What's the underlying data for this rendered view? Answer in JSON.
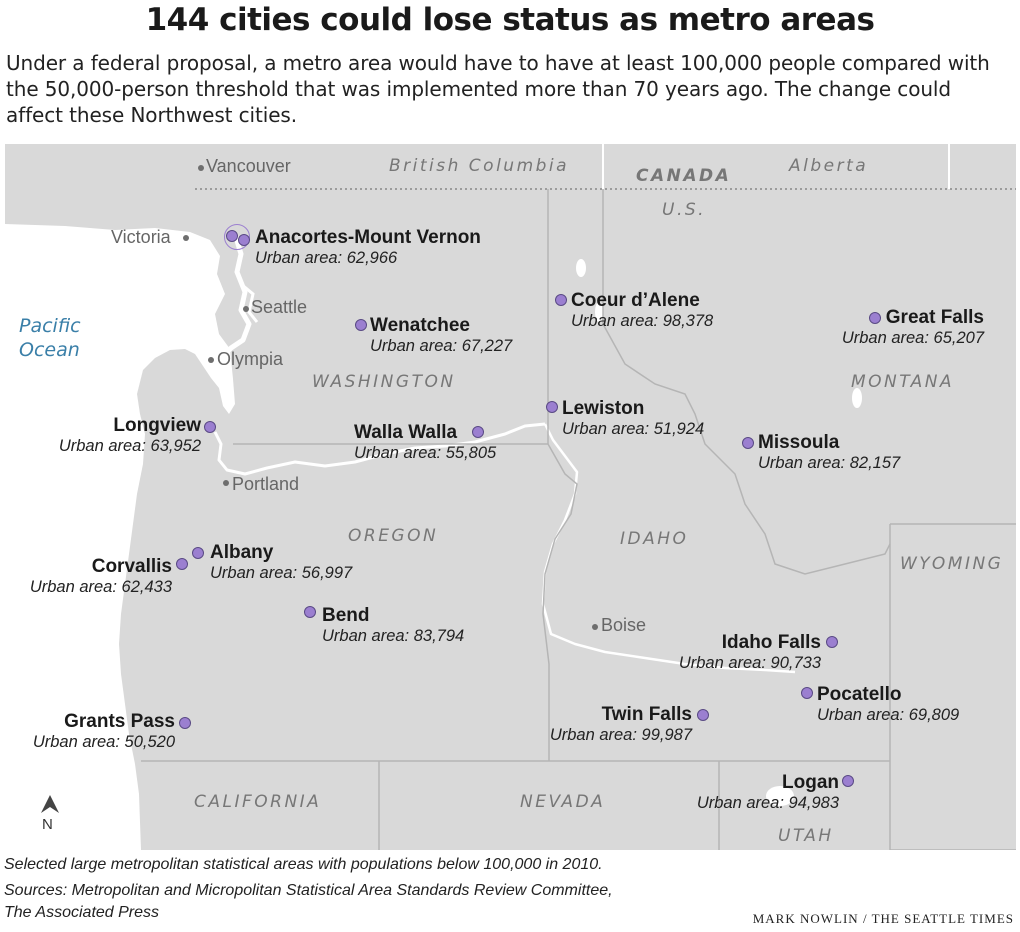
{
  "title": "144 cities could lose status as metro areas",
  "subtitle": "Under a federal proposal, a metro area would have to have at least 100,000 people compared with the 50,000-person threshold that was implemented more than 70 years ago. The change could affect these Northwest cities.",
  "regions": {
    "british_columbia": "British Columbia",
    "alberta": "Alberta",
    "canada": "CANADA",
    "us": "U.S.",
    "washington": "WASHINGTON",
    "oregon": "OREGON",
    "idaho": "IDAHO",
    "montana": "MONTANA",
    "wyoming": "WYOMING",
    "california": "CALIFORNIA",
    "nevada": "NEVADA",
    "utah": "UTAH",
    "pacific_ocean_1": "Pacific",
    "pacific_ocean_2": "Ocean"
  },
  "reference_cities": {
    "vancouver": "Vancouver",
    "victoria": "Victoria",
    "seattle": "Seattle",
    "olympia": "Olympia",
    "portland": "Portland",
    "boise": "Boise"
  },
  "cities": {
    "anacortes": {
      "name": "Anacortes-Mount Vernon",
      "urban": "Urban area: 62,966"
    },
    "coeur_dalene": {
      "name": "Coeur d’Alene",
      "urban": "Urban area: 98,378"
    },
    "great_falls": {
      "name": "Great Falls",
      "urban": "Urban area: 65,207"
    },
    "wenatchee": {
      "name": "Wenatchee",
      "urban": "Urban area: 67,227"
    },
    "longview": {
      "name": "Longview",
      "urban": "Urban area: 63,952"
    },
    "walla_walla": {
      "name": "Walla Walla",
      "urban": "Urban area: 55,805"
    },
    "lewiston": {
      "name": "Lewiston",
      "urban": "Urban area: 51,924"
    },
    "missoula": {
      "name": "Missoula",
      "urban": "Urban area: 82,157"
    },
    "albany": {
      "name": "Albany",
      "urban": "Urban area: 56,997"
    },
    "corvallis": {
      "name": "Corvallis",
      "urban": "Urban area: 62,433"
    },
    "bend": {
      "name": "Bend",
      "urban": "Urban area: 83,794"
    },
    "idaho_falls": {
      "name": "Idaho Falls",
      "urban": "Urban area: 90,733"
    },
    "pocatello": {
      "name": "Pocatello",
      "urban": "Urban area: 69,809"
    },
    "grants_pass": {
      "name": "Grants Pass",
      "urban": "Urban area: 50,520"
    },
    "twin_falls": {
      "name": "Twin Falls",
      "urban": "Urban area: 99,987"
    },
    "logan": {
      "name": "Logan",
      "urban": "Urban area: 94,983"
    }
  },
  "north_arrow": "N",
  "notes": {
    "selection": "Selected large metropolitan statistical areas with populations below 100,000 in 2010.",
    "sources_line1": "Sources: Metropolitan and Micropolitan Statistical Area Standards Review Committee,",
    "sources_line2": "The Associated Press"
  },
  "credit": "MARK NOWLIN / THE SEATTLE TIMES",
  "colors": {
    "land": "#d9d9d9",
    "water": "#ffffff",
    "border": "#ffffff",
    "city_dot": "#9b7fd0",
    "ocean_label": "#3a7fa8"
  }
}
